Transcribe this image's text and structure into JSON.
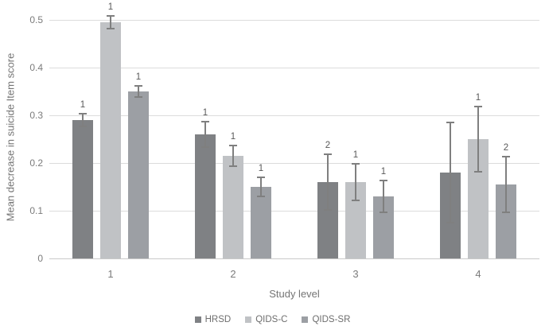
{
  "chart_data": {
    "type": "bar",
    "title": "",
    "xlabel": "Study level",
    "ylabel": "Mean decrease in  suicide Item score",
    "categories": [
      "1",
      "2",
      "3",
      "4"
    ],
    "ylim": [
      0,
      0.5
    ],
    "yticks": [
      0,
      0.1,
      0.2,
      0.3,
      0.4,
      0.5
    ],
    "ytick_labels": [
      "0",
      "0.1",
      "0.2",
      "0.3",
      "0.4",
      "0.5"
    ],
    "grid": true,
    "legend_position": "bottom",
    "series": [
      {
        "name": "HRSD",
        "color": "#7f8184",
        "values": [
          0.29,
          0.26,
          0.16,
          0.18
        ],
        "errors": [
          0.014,
          0.027,
          0.058,
          0.105
        ],
        "bar_labels": [
          "1",
          "1",
          "2",
          ""
        ]
      },
      {
        "name": "QIDS-C",
        "color": "#c0c2c5",
        "values": [
          0.495,
          0.215,
          0.16,
          0.25
        ],
        "errors": [
          0.013,
          0.021,
          0.038,
          0.069
        ],
        "bar_labels": [
          "1",
          "1",
          "1",
          "1"
        ]
      },
      {
        "name": "QIDS-SR",
        "color": "#9c9fa4",
        "values": [
          0.35,
          0.15,
          0.13,
          0.155
        ],
        "errors": [
          0.012,
          0.02,
          0.034,
          0.058
        ],
        "bar_labels": [
          "1",
          "1",
          "1",
          "2"
        ]
      }
    ],
    "colors": {
      "gridline": "#dcdcdc",
      "axis_line": "#c9c9c9",
      "error_bar": "#7f7f7f",
      "tick_text": "#7b7b7b",
      "bar_label_text": "#595959",
      "axis_title_text": "#757575"
    }
  }
}
